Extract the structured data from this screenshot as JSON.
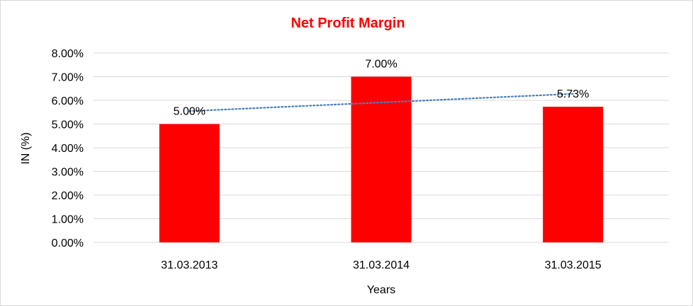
{
  "chart_data": {
    "type": "bar",
    "title": "Net Profit Margin",
    "xlabel": "Years",
    "ylabel": "IN (%)",
    "categories": [
      "31.03.2013",
      "31.03.2014",
      "31.03.2015"
    ],
    "series": [
      {
        "values": [
          5.0,
          7.0,
          5.73
        ],
        "labels": [
          "5.00%",
          "7.00%",
          "5.73%"
        ],
        "color": "#ff0000"
      }
    ],
    "trendline": {
      "type": "linear",
      "style": "dotted",
      "color": "#4a7ebb"
    },
    "ylim": [
      0,
      8
    ],
    "yticks": [
      0,
      1,
      2,
      3,
      4,
      5,
      6,
      7,
      8
    ],
    "ytick_labels": [
      "0.00%",
      "1.00%",
      "2.00%",
      "3.00%",
      "4.00%",
      "5.00%",
      "6.00%",
      "7.00%",
      "8.00%"
    ],
    "grid": true,
    "legend": "none",
    "title_color": "#ff0000",
    "gridline_color": "#d9d9d9"
  }
}
